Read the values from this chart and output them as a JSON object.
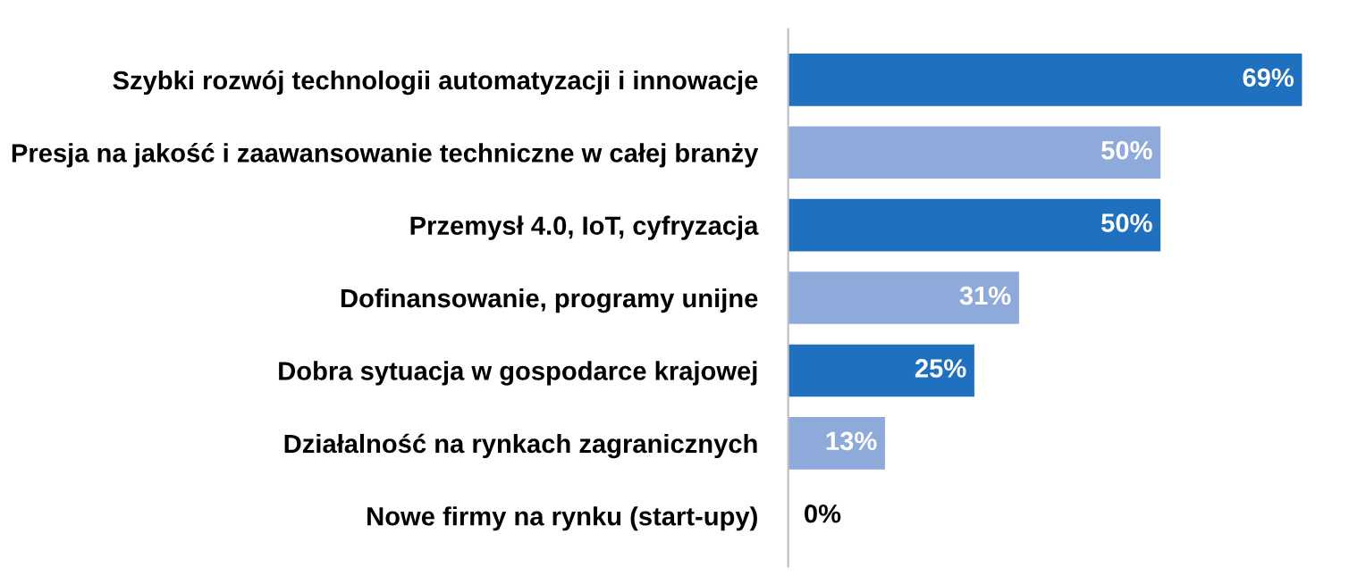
{
  "chart_data": {
    "type": "bar",
    "orientation": "horizontal",
    "categories": [
      "Szybki rozwój technologii automatyzacji i innowacje",
      "Presja na jakość i zaawansowanie techniczne w całej branży",
      "Przemysł 4.0, IoT, cyfryzacja",
      "Dofinansowanie, programy unijne",
      "Dobra sytuacja w gospodarce krajowej",
      "Działalność na rynkach zagranicznych",
      "Nowe firmy na rynku (start-upy)"
    ],
    "values": [
      69,
      50,
      50,
      31,
      25,
      13,
      0
    ],
    "value_labels": [
      "69%",
      "50%",
      "50%",
      "31%",
      "25%",
      "13%",
      "0%"
    ],
    "colors": [
      "#1f70bf",
      "#8eaadb",
      "#1f70bf",
      "#8eaadb",
      "#1f70bf",
      "#8eaadb",
      "#1f70bf"
    ],
    "grid": false,
    "legend": false
  }
}
